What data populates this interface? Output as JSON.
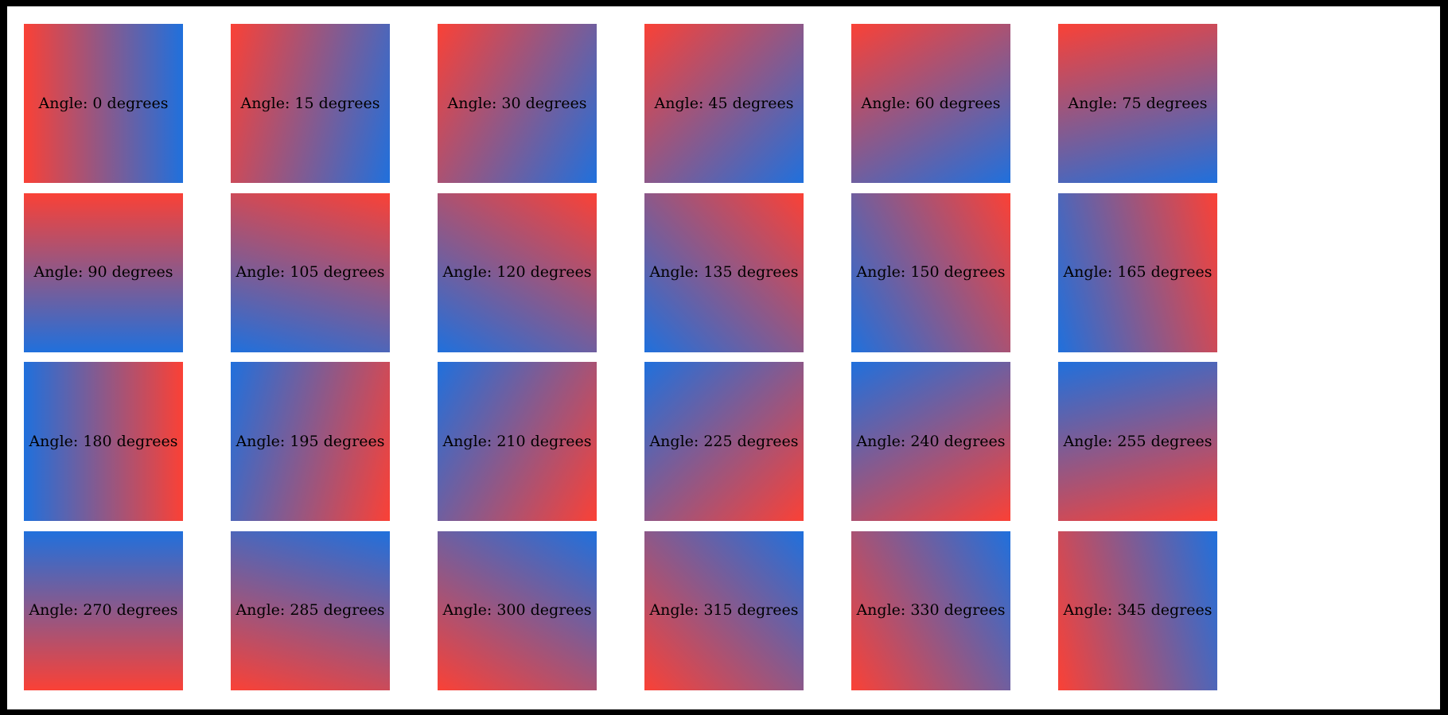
{
  "page": {
    "background_color": "#ffffff",
    "frame_color": "#000000"
  },
  "gradient": {
    "start_color": "#fa4136",
    "end_color": "#2070dc",
    "css_angle_offset": 90,
    "label_color": "#000000"
  },
  "tiles": [
    {
      "angle": 0,
      "label": "Angle: 0 degrees"
    },
    {
      "angle": 15,
      "label": "Angle: 15 degrees"
    },
    {
      "angle": 30,
      "label": "Angle: 30 degrees"
    },
    {
      "angle": 45,
      "label": "Angle: 45 degrees"
    },
    {
      "angle": 60,
      "label": "Angle: 60 degrees"
    },
    {
      "angle": 75,
      "label": "Angle: 75 degrees"
    },
    {
      "angle": 90,
      "label": "Angle: 90 degrees"
    },
    {
      "angle": 105,
      "label": "Angle: 105 degrees"
    },
    {
      "angle": 120,
      "label": "Angle: 120 degrees"
    },
    {
      "angle": 135,
      "label": "Angle: 135 degrees"
    },
    {
      "angle": 150,
      "label": "Angle: 150 degrees"
    },
    {
      "angle": 165,
      "label": "Angle: 165 degrees"
    },
    {
      "angle": 180,
      "label": "Angle: 180 degrees"
    },
    {
      "angle": 195,
      "label": "Angle: 195 degrees"
    },
    {
      "angle": 210,
      "label": "Angle: 210 degrees"
    },
    {
      "angle": 225,
      "label": "Angle: 225 degrees"
    },
    {
      "angle": 240,
      "label": "Angle: 240 degrees"
    },
    {
      "angle": 255,
      "label": "Angle: 255 degrees"
    },
    {
      "angle": 270,
      "label": "Angle: 270 degrees"
    },
    {
      "angle": 285,
      "label": "Angle: 285 degrees"
    },
    {
      "angle": 300,
      "label": "Angle: 300 degrees"
    },
    {
      "angle": 315,
      "label": "Angle: 315 degrees"
    },
    {
      "angle": 330,
      "label": "Angle: 330 degrees"
    },
    {
      "angle": 345,
      "label": "Angle: 345 degrees"
    }
  ]
}
